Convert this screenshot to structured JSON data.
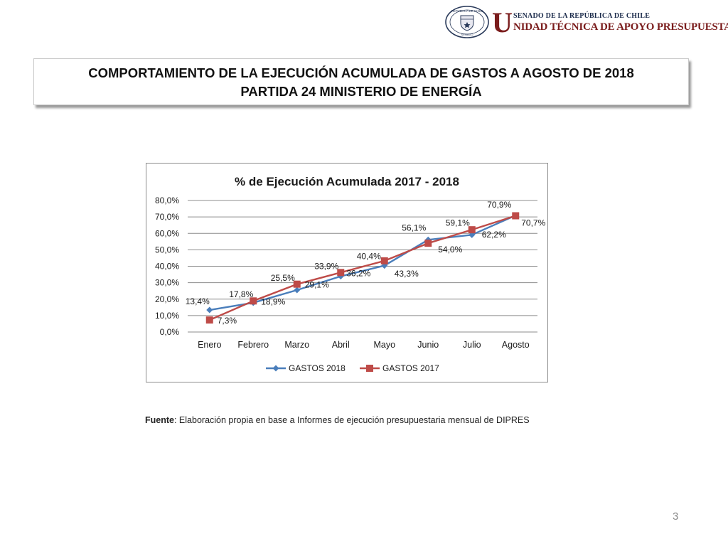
{
  "header": {
    "seal_text_top": "REPUBLICA DE CHILE",
    "seal_text_bottom": "SENADO",
    "brand_initial": "U",
    "brand_line1": "SENADO DE LA REPÚBLICA DE CHILE",
    "brand_line2": "NIDAD TÉCNICA DE APOYO PRESUPUESTARIO",
    "brand_color": "#7a1c1c"
  },
  "title": {
    "line1": "COMPORTAMIENTO DE LA EJECUCIÓN ACUMULADA DE GASTOS A AGOSTO DE 2018",
    "line2": "PARTIDA 24 MINISTERIO DE ENERGÍA"
  },
  "chart_data": {
    "type": "line",
    "title": "% de Ejecución Acumulada 2017 - 2018",
    "categories": [
      "Enero",
      "Febrero",
      "Marzo",
      "Abril",
      "Mayo",
      "Junio",
      "Julio",
      "Agosto"
    ],
    "ylim": [
      0,
      80
    ],
    "yticks": [
      "0,0%",
      "10,0%",
      "20,0%",
      "30,0%",
      "40,0%",
      "50,0%",
      "60,0%",
      "70,0%",
      "80,0%"
    ],
    "grid": true,
    "legend_position": "bottom",
    "series": [
      {
        "name": "GASTOS 2018",
        "color": "#4a7ebb",
        "marker": "diamond",
        "values": [
          13.4,
          17.8,
          25.5,
          33.9,
          40.4,
          56.1,
          59.1,
          70.9
        ],
        "labels": [
          "13,4%",
          "17,8%",
          "25,5%",
          "33,9%",
          "40,4%",
          "56,1%",
          "59,1%",
          "70,9%"
        ]
      },
      {
        "name": "GASTOS 2017",
        "color": "#be4b48",
        "marker": "square",
        "values": [
          7.3,
          18.9,
          29.1,
          36.2,
          43.3,
          54.0,
          62.2,
          70.7
        ],
        "labels": [
          "7,3%",
          "18,9%",
          "29,1%",
          "36,2%",
          "43,3%",
          "54,0%",
          "62,2%",
          "70,7%"
        ]
      }
    ]
  },
  "source": {
    "label": "Fuente",
    "text": ": Elaboración propia en base  a Informes de ejecución presupuestaria mensual de DIPRES"
  },
  "page_number": "3"
}
